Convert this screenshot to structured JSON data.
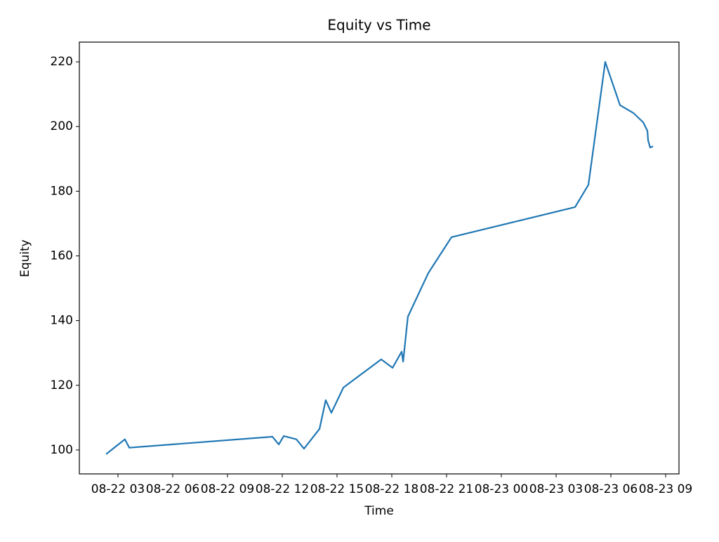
{
  "chart_data": {
    "type": "line",
    "title": "Equity vs Time",
    "x_label": "Time",
    "y_label": "Equity",
    "x": [
      2.35,
      3.38,
      3.62,
      11.46,
      11.81,
      12.08,
      12.77,
      12.96,
      13.19,
      14.04,
      14.38,
      14.69,
      15.35,
      17.42,
      18.04,
      18.54,
      18.62,
      18.88,
      20.0,
      21.27,
      28.04,
      28.77,
      29.69,
      30.5,
      31.23,
      31.77,
      32.0,
      32.04,
      32.15,
      32.31
    ],
    "values": [
      98.7,
      103.3,
      100.7,
      104.1,
      101.7,
      104.3,
      103.3,
      102.0,
      100.4,
      106.5,
      115.4,
      111.5,
      119.3,
      128.0,
      125.4,
      130.4,
      127.3,
      141.2,
      154.7,
      165.8,
      175.1,
      182.0,
      220.0,
      206.6,
      204.2,
      201.3,
      198.7,
      195.7,
      193.5,
      193.9
    ],
    "color": "#1f77b4",
    "xlim": [
      0.885,
      33.73
    ],
    "xticks": [
      {
        "value": 3,
        "label": "08-22 03"
      },
      {
        "value": 6,
        "label": "08-22 06"
      },
      {
        "value": 9,
        "label": "08-22 09"
      },
      {
        "value": 12,
        "label": "08-22 12"
      },
      {
        "value": 15,
        "label": "08-22 15"
      },
      {
        "value": 18,
        "label": "08-22 18"
      },
      {
        "value": 21,
        "label": "08-22 21"
      },
      {
        "value": 24,
        "label": "08-23 00"
      },
      {
        "value": 27,
        "label": "08-23 03"
      },
      {
        "value": 30,
        "label": "08-23 06"
      },
      {
        "value": 33,
        "label": "08-23 09"
      }
    ],
    "ylim": [
      92.6,
      226.1
    ],
    "yticks": [
      100,
      120,
      140,
      160,
      180,
      200,
      220
    ],
    "grid": false
  }
}
